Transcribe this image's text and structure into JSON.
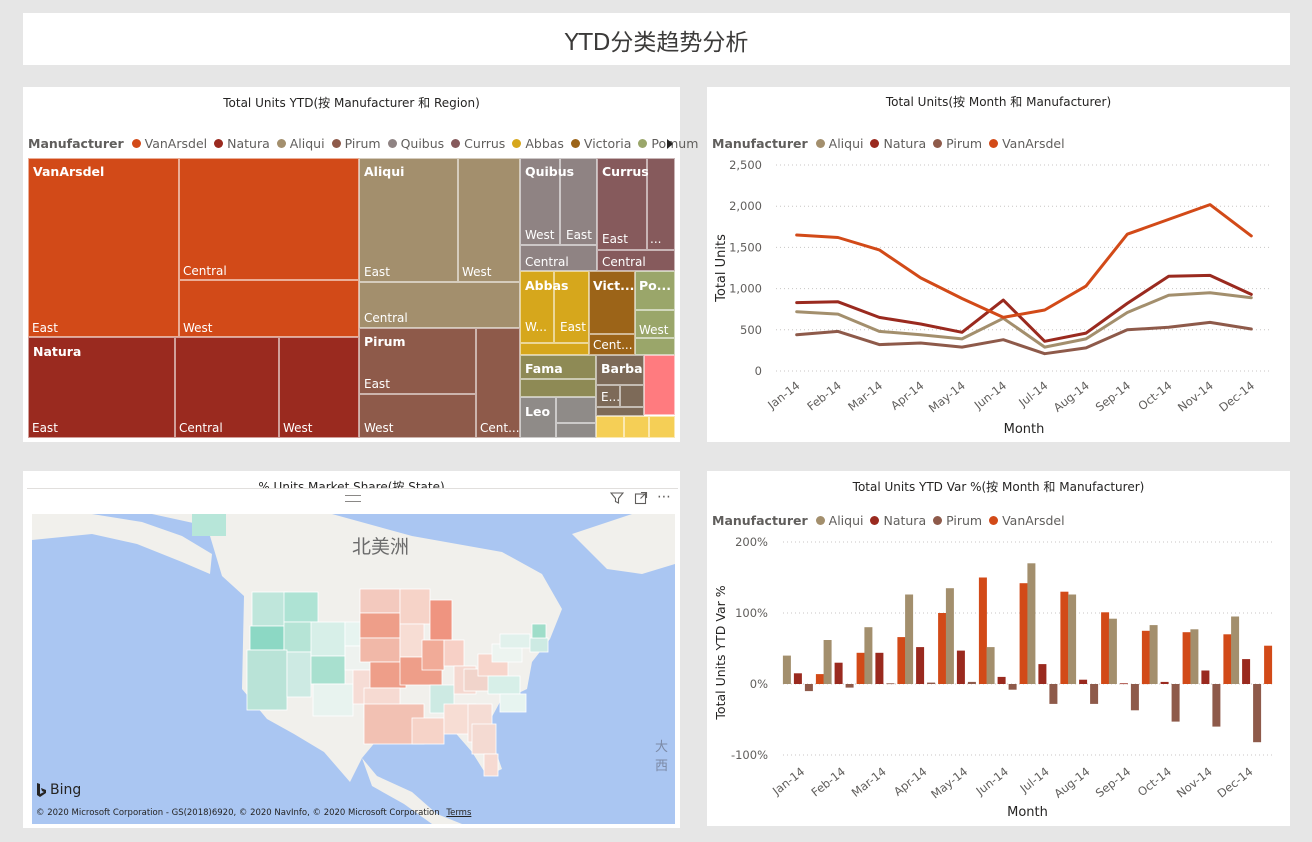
{
  "page_title": "YTD分类趋势分析",
  "treemap": {
    "title": "Total Units YTD(按 Manufacturer 和 Region)",
    "legend_title": "Manufacturer",
    "legend": [
      {
        "name": "VanArsdel",
        "color": "#d24a18"
      },
      {
        "name": "Natura",
        "color": "#9a2a1f"
      },
      {
        "name": "Aliqui",
        "color": "#a38f6d"
      },
      {
        "name": "Pirum",
        "color": "#8e5a4a"
      },
      {
        "name": "Quibus",
        "color": "#8f8383"
      },
      {
        "name": "Currus",
        "color": "#865a5c"
      },
      {
        "name": "Abbas",
        "color": "#d6a71c"
      },
      {
        "name": "Victoria",
        "color": "#9c6418"
      },
      {
        "name": "Pomum",
        "color": "#9aa66a"
      }
    ],
    "labels": {
      "vanarsdel": "VanArsdel",
      "van_east": "East",
      "van_central": "Central",
      "van_west": "West",
      "natura": "Natura",
      "nat_east": "East",
      "nat_central": "Central",
      "nat_west": "West",
      "aliqui": "Aliqui",
      "ali_east": "East",
      "ali_west": "West",
      "ali_central": "Central",
      "pirum": "Pirum",
      "pir_east": "East",
      "pir_west": "West",
      "pir_central": "Cent...",
      "quibus": "Quibus",
      "qui_west": "West",
      "qui_east": "East",
      "qui_central": "Central",
      "currus": "Currus",
      "cur_east": "East",
      "cur_more": "...",
      "cur_central": "Central",
      "abbas": "Abbas",
      "abb_west": "W...",
      "abb_east": "East",
      "victoria": "Vict...",
      "vic_central": "Cent...",
      "pomum": "Po...",
      "pom_west": "West",
      "fama": "Fama",
      "barba": "Barba",
      "bar_east": "E...",
      "leo": "Leo"
    }
  },
  "line_chart": {
    "title": "Total Units(按 Month 和 Manufacturer)",
    "legend_title": "Manufacturer",
    "xlabel": "Month",
    "ylabel": "Total Units",
    "y_ticks": [
      "0",
      "500",
      "1,000",
      "1,500",
      "2,000",
      "2,500"
    ]
  },
  "map": {
    "title": "% Units Market Share(按 State)",
    "continent_label": "北美洲",
    "ocean_label": "大西",
    "bing_label": "Bing",
    "copyright": "© 2020 Microsoft Corporation - GS(2018)6920, © 2020 NavInfo, © 2020 Microsoft Corporation",
    "terms": "Terms",
    "header_icons": [
      "drag-handle-icon",
      "filter-icon",
      "focus-mode-icon",
      "more-options-icon"
    ]
  },
  "bar_chart": {
    "title": "Total Units YTD Var %(按 Month 和 Manufacturer)",
    "legend_title": "Manufacturer",
    "xlabel": "Month",
    "ylabel": "Total Units YTD Var %",
    "y_ticks": [
      "-100%",
      "0%",
      "100%",
      "200%"
    ]
  },
  "chart_data": [
    {
      "type": "treemap",
      "title": "Total Units YTD(按 Manufacturer 和 Region)",
      "groups": [
        {
          "name": "VanArsdel",
          "children": [
            "East",
            "Central",
            "West"
          ]
        },
        {
          "name": "Natura",
          "children": [
            "East",
            "Central",
            "West"
          ]
        },
        {
          "name": "Aliqui",
          "children": [
            "East",
            "West",
            "Central"
          ]
        },
        {
          "name": "Pirum",
          "children": [
            "East",
            "West",
            "Central"
          ]
        },
        {
          "name": "Quibus",
          "children": [
            "West",
            "East",
            "Central"
          ]
        },
        {
          "name": "Currus",
          "children": [
            "East",
            "Central"
          ]
        },
        {
          "name": "Abbas",
          "children": [
            "West",
            "East"
          ]
        },
        {
          "name": "Victoria",
          "children": [
            "Central"
          ]
        },
        {
          "name": "Pomum",
          "children": [
            "West"
          ]
        },
        {
          "name": "Fama",
          "children": []
        },
        {
          "name": "Barba",
          "children": [
            "East"
          ]
        },
        {
          "name": "Leo",
          "children": []
        }
      ]
    },
    {
      "type": "line",
      "title": "Total Units(按 Month 和 Manufacturer)",
      "x": [
        "Jan-14",
        "Feb-14",
        "Mar-14",
        "Apr-14",
        "May-14",
        "Jun-14",
        "Jul-14",
        "Aug-14",
        "Sep-14",
        "Oct-14",
        "Nov-14",
        "Dec-14"
      ],
      "xlabel": "Month",
      "ylabel": "Total Units",
      "ylim": [
        0,
        2500
      ],
      "series": [
        {
          "name": "Aliqui",
          "color": "#a38f6d",
          "values": [
            720,
            690,
            480,
            440,
            390,
            640,
            290,
            390,
            710,
            920,
            950,
            890
          ]
        },
        {
          "name": "Natura",
          "color": "#9a2a1f",
          "values": [
            830,
            840,
            650,
            570,
            470,
            860,
            360,
            460,
            820,
            1150,
            1160,
            930
          ]
        },
        {
          "name": "Pirum",
          "color": "#8e5a4a",
          "values": [
            440,
            480,
            320,
            340,
            290,
            380,
            210,
            280,
            500,
            530,
            590,
            510
          ]
        },
        {
          "name": "VanArsdel",
          "color": "#d24a18",
          "values": [
            1650,
            1620,
            1470,
            1130,
            880,
            650,
            740,
            1030,
            1660,
            1840,
            2020,
            1640
          ]
        }
      ],
      "legend_position": "top-left",
      "grid": true
    },
    {
      "type": "bar",
      "title": "Total Units YTD Var %(按 Month 和 Manufacturer)",
      "categories": [
        "Jan-14",
        "Feb-14",
        "Mar-14",
        "Apr-14",
        "May-14",
        "Jun-14",
        "Jul-14",
        "Aug-14",
        "Sep-14",
        "Oct-14",
        "Nov-14",
        "Dec-14"
      ],
      "xlabel": "Month",
      "ylabel": "Total Units YTD Var %",
      "ylim": [
        -100,
        200
      ],
      "unit": "%",
      "series": [
        {
          "name": "Aliqui",
          "color": "#a38f6d",
          "values": [
            40,
            62,
            80,
            126,
            135,
            52,
            170,
            126,
            92,
            83,
            77,
            95
          ]
        },
        {
          "name": "Natura",
          "color": "#9a2a1f",
          "values": [
            15,
            30,
            44,
            52,
            47,
            10,
            28,
            6,
            1,
            3,
            19,
            35
          ]
        },
        {
          "name": "Pirum",
          "color": "#8e5a4a",
          "values": [
            -10,
            -5,
            1,
            2,
            3,
            -8,
            -28,
            -28,
            -37,
            -53,
            -60,
            -82
          ]
        },
        {
          "name": "VanArsdel",
          "color": "#d24a18",
          "values": [
            14,
            44,
            66,
            100,
            150,
            142,
            130,
            101,
            75,
            73,
            70,
            54
          ]
        }
      ],
      "legend_position": "top-left",
      "grid": true
    },
    {
      "type": "map",
      "title": "% Units Market Share(按 State)",
      "note": ""
    }
  ]
}
